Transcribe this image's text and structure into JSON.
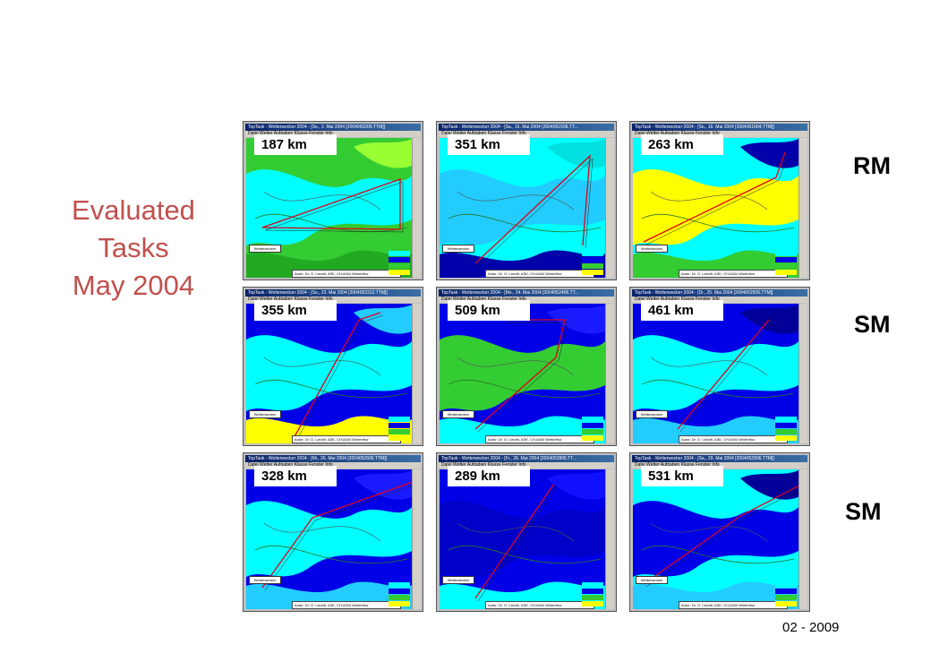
{
  "heading": {
    "line1": "Evaluated",
    "line2": "Tasks",
    "line3": "May 2004"
  },
  "rows": [
    {
      "class_label": "RM"
    },
    {
      "class_label": "SM"
    },
    {
      "class_label": "SM"
    }
  ],
  "footer": "02 - 2009",
  "tasks": [
    {
      "distance": "187 km",
      "title": "TopTask - Wetterwecker 2004 - [So., 2. Mai 2004 [2004050206.TTM]]",
      "variant": "green"
    },
    {
      "distance": "351 km",
      "title": "TopTask - Wetterwecker 2004 - [Sa., 15. Mai 2004 [2004051506.TT...",
      "variant": "cyan"
    },
    {
      "distance": "263 km",
      "title": "TopTask - Wetterwecker 2004 - [So., 16. Mai 2004 [2004051604.TTM]]",
      "variant": "cyan-yellow"
    },
    {
      "distance": "355 km",
      "title": "TopTask - Wetterwecker 2004 - [So., 23. Mai 2004 [2004052312.TTM]]",
      "variant": "blue-yellow"
    },
    {
      "distance": "509 km",
      "title": "TopTask - Wetterwecker 2004 - [Mo., 24. Mai 2004 [2004052406.TT...",
      "variant": "blue-green"
    },
    {
      "distance": "461 km",
      "title": "TopTask - Wetterwecker 2004 - [Di., 25. Mai 2004 [2004052506.TTM]]",
      "variant": "blue"
    },
    {
      "distance": "328 km",
      "title": "TopTask - Wetterwecker 2004 - [Mi., 26. Mai 2004 [2004052606.TTM]]",
      "variant": "blue2"
    },
    {
      "distance": "289 km",
      "title": "TopTask - Wetterwecker 2004 - [Fr., 28. Mai 2004 [2004052806.TT...",
      "variant": "blue3"
    },
    {
      "distance": "531 km",
      "title": "TopTask - Wetterwecker 2004 - [Sa., 29. Mai 2004 [2004052906.TTM]]",
      "variant": "cyan2"
    }
  ],
  "window": {
    "menu": "Datei  Wetter  Aufgaben  Klasse  Fenster  Info",
    "stamp": "Wetterwecker",
    "footer_text": "Autor: Dr. O. Liechti, ASK, CH-8404 Winterthur"
  },
  "colors": {
    "title": "#c0504d",
    "map_blue": "#0000e6",
    "map_cyan": "#00ffff",
    "map_green": "#33cc33",
    "map_yellow": "#ffff00",
    "route": "#e0001a"
  }
}
